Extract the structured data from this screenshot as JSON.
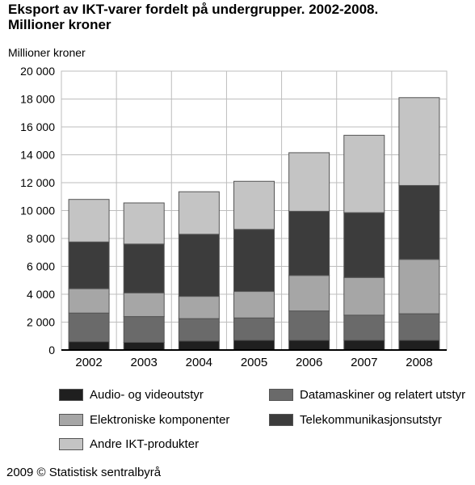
{
  "title_lines": [
    "Eksport av IKT-varer fordelt på undergrupper. 2002-2008.",
    "Millioner kroner"
  ],
  "footer": "2009 © Statistisk sentralbyrå",
  "chart_data": {
    "type": "bar",
    "stacked": true,
    "title": "Eksport av IKT-varer fordelt på undergrupper. 2002-2008. Millioner kroner",
    "ylabel": "Millioner kroner",
    "xlabel": "",
    "ylim": [
      0,
      20000
    ],
    "yticks": [
      0,
      2000,
      4000,
      6000,
      8000,
      10000,
      12000,
      14000,
      16000,
      18000,
      20000
    ],
    "ytick_labels": [
      "0",
      "2 000",
      "4 000",
      "6 000",
      "8 000",
      "10 000",
      "12 000",
      "14 000",
      "16 000",
      "18 000",
      "20 000"
    ],
    "grid": true,
    "legend_position": "bottom",
    "categories": [
      "2002",
      "2003",
      "2004",
      "2005",
      "2006",
      "2007",
      "2008"
    ],
    "series": [
      {
        "name": "Audio- og videoutstyr",
        "color": "#1f1f1f",
        "values": [
          600,
          550,
          650,
          700,
          700,
          700,
          700
        ]
      },
      {
        "name": "Datamaskiner og relatert utstyr",
        "color": "#6a6a6a",
        "values": [
          2050,
          1850,
          1600,
          1600,
          2100,
          1800,
          1900
        ]
      },
      {
        "name": "Elektroniske komponenter",
        "color": "#a6a6a6",
        "values": [
          1750,
          1700,
          1600,
          1900,
          2550,
          2700,
          3900
        ]
      },
      {
        "name": "Telekommunikasjonsutstyr",
        "color": "#3c3c3c",
        "values": [
          3350,
          3500,
          4450,
          4450,
          4600,
          4650,
          5300
        ]
      },
      {
        "name": "Andre IKT-produkter",
        "color": "#c4c4c4",
        "values": [
          3050,
          2950,
          3050,
          3450,
          4200,
          5550,
          6300
        ]
      }
    ]
  }
}
